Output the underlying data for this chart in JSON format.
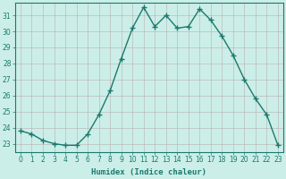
{
  "x": [
    0,
    1,
    2,
    3,
    4,
    5,
    6,
    7,
    8,
    9,
    10,
    11,
    12,
    13,
    14,
    15,
    16,
    17,
    18,
    19,
    20,
    21,
    22,
    23
  ],
  "y": [
    23.8,
    23.6,
    23.2,
    23.0,
    22.9,
    22.9,
    23.6,
    24.8,
    26.3,
    28.3,
    30.2,
    31.5,
    30.3,
    31.0,
    30.2,
    30.3,
    31.4,
    30.7,
    29.7,
    28.5,
    27.0,
    25.8,
    24.8,
    22.9
  ],
  "line_color": "#1a7a6e",
  "marker": "+",
  "marker_size": 4,
  "bg_color": "#cceee8",
  "grid_color_major": "#b8b0b0",
  "grid_color_minor": "#d8c8c8",
  "xlabel": "Humidex (Indice chaleur)",
  "xlim": [
    -0.5,
    23.5
  ],
  "ylim": [
    22.5,
    31.8
  ],
  "yticks": [
    23,
    24,
    25,
    26,
    27,
    28,
    29,
    30,
    31
  ],
  "xticks": [
    0,
    1,
    2,
    3,
    4,
    5,
    6,
    7,
    8,
    9,
    10,
    11,
    12,
    13,
    14,
    15,
    16,
    17,
    18,
    19,
    20,
    21,
    22,
    23
  ],
  "xlabel_fontsize": 6.5,
  "tick_fontsize": 5.5,
  "line_width": 1.0
}
